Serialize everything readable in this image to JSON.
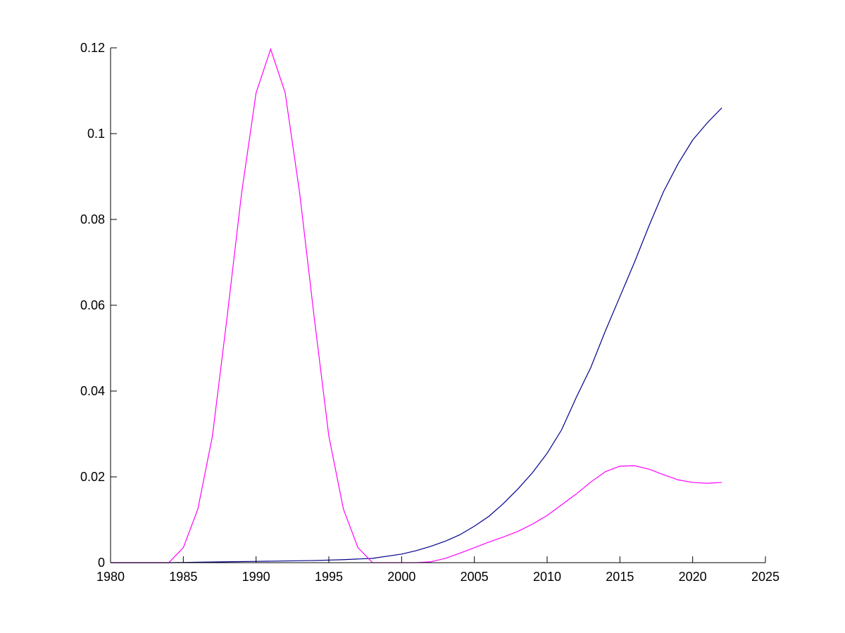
{
  "chart_data": {
    "type": "line",
    "title": "",
    "xlabel": "",
    "ylabel": "",
    "xlim": [
      1980,
      2025
    ],
    "ylim": [
      0,
      0.12
    ],
    "grid": false,
    "box": "left-bottom axes only",
    "xticks": [
      "1980",
      "1985",
      "1990",
      "1995",
      "2000",
      "2005",
      "2010",
      "2015",
      "2020",
      "2025"
    ],
    "yticks": [
      "0",
      "0.02",
      "0.04",
      "0.06",
      "0.08",
      "0.1",
      "0.12"
    ],
    "series": [
      {
        "color": "#00008b",
        "x": [
          1980,
          1982,
          1984,
          1986,
          1988,
          1990,
          1992,
          1994,
          1996,
          1998,
          2000,
          2001,
          2002,
          2003,
          2004,
          2005,
          2006,
          2007,
          2008,
          2009,
          2010,
          2011,
          2012,
          2013,
          2014,
          2015,
          2016,
          2017,
          2018,
          2019,
          2020,
          2021,
          2022
        ],
        "y": [
          0,
          0,
          0,
          0.0001,
          0.0002,
          0.0003,
          0.0004,
          0.0005,
          0.0007,
          0.001,
          0.002,
          0.0028,
          0.0038,
          0.005,
          0.0065,
          0.0085,
          0.0108,
          0.0138,
          0.0172,
          0.021,
          0.0255,
          0.031,
          0.0385,
          0.0455,
          0.054,
          0.062,
          0.07,
          0.0785,
          0.0865,
          0.093,
          0.0985,
          0.1025,
          0.106
        ]
      },
      {
        "color": "#ff00ff",
        "x": [
          1980,
          1981,
          1982,
          1983,
          1984,
          1985,
          1986,
          1987,
          1988,
          1989,
          1990,
          1991,
          1992,
          1993,
          1994,
          1995,
          1996,
          1997,
          1998,
          1999,
          2000,
          2001,
          2002,
          2003,
          2004,
          2005,
          2006,
          2007,
          2008,
          2009,
          2010,
          2011,
          2012,
          2013,
          2014,
          2015,
          2016,
          2017,
          2018,
          2019,
          2020,
          2021,
          2022
        ],
        "y": [
          0,
          0,
          0,
          0,
          0,
          0.0035,
          0.0125,
          0.0295,
          0.057,
          0.086,
          0.1095,
          0.1197,
          0.1095,
          0.086,
          0.057,
          0.0295,
          0.0125,
          0.0035,
          0,
          0,
          0,
          0,
          0.0002,
          0.001,
          0.0022,
          0.0035,
          0.0048,
          0.006,
          0.0073,
          0.009,
          0.011,
          0.0135,
          0.016,
          0.0188,
          0.0212,
          0.0225,
          0.0226,
          0.0218,
          0.0205,
          0.0193,
          0.0187,
          0.0185,
          0.0187
        ]
      }
    ]
  }
}
